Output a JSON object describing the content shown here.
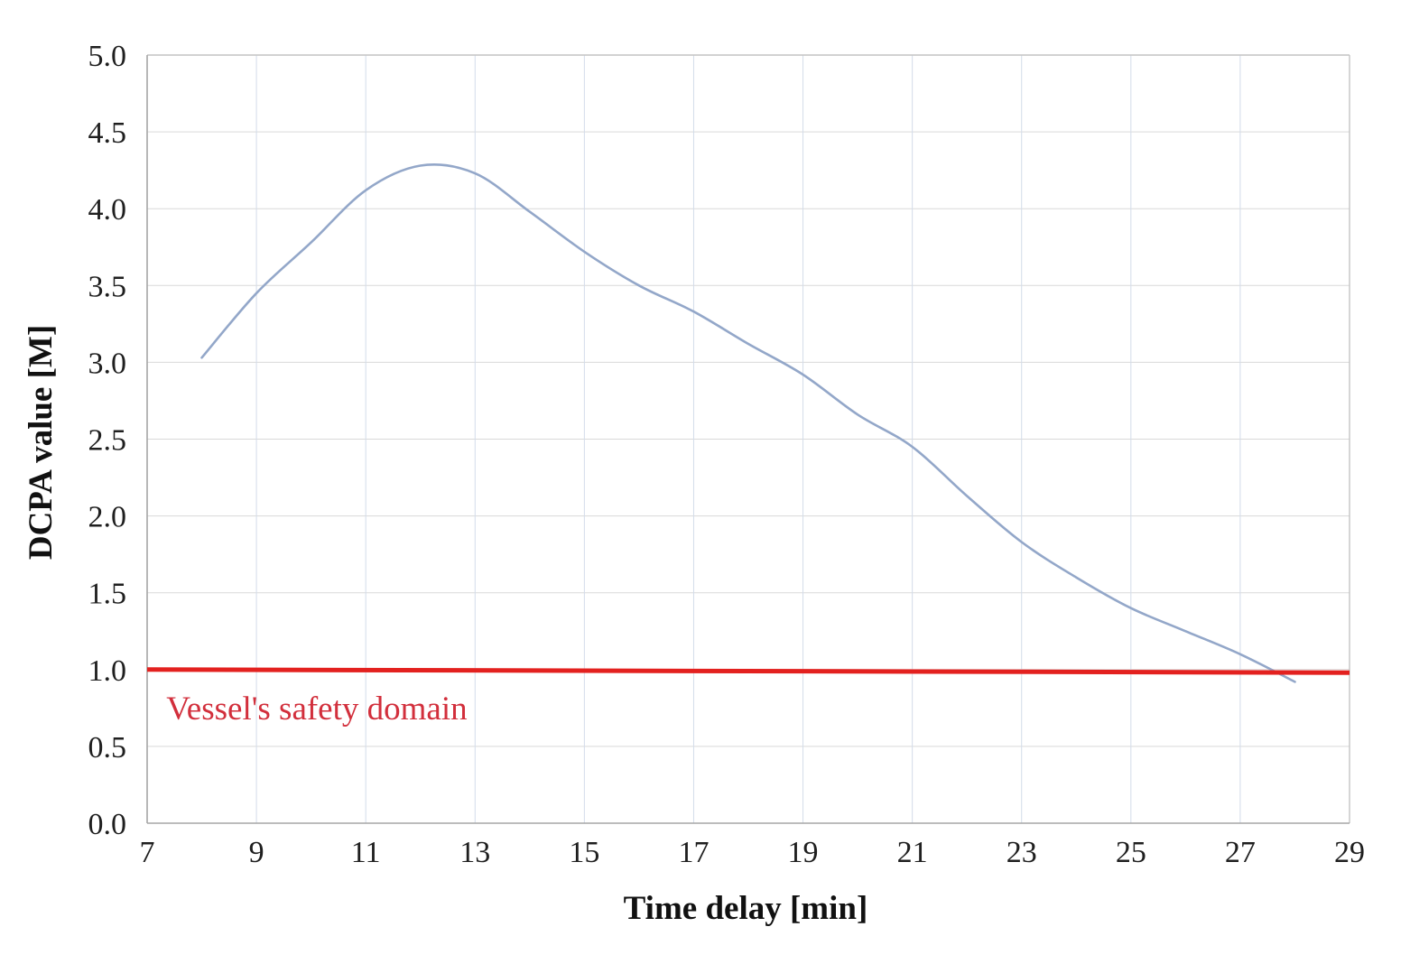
{
  "chart_data": {
    "type": "line",
    "title": "",
    "xlabel": "Time delay [min]",
    "ylabel": "DCPA value [M]",
    "xlim": [
      7,
      29
    ],
    "ylim": [
      0.0,
      5.0
    ],
    "grid": true,
    "legend_position": "none",
    "x_ticks": [
      7,
      9,
      11,
      13,
      15,
      17,
      19,
      21,
      23,
      25,
      27,
      29
    ],
    "x_tick_labels": [
      "7",
      "9",
      "11",
      "13",
      "15",
      "17",
      "19",
      "21",
      "23",
      "25",
      "27",
      "29"
    ],
    "y_ticks": [
      0.0,
      0.5,
      1.0,
      1.5,
      2.0,
      2.5,
      3.0,
      3.5,
      4.0,
      4.5,
      5.0
    ],
    "y_tick_labels": [
      "0.0",
      "0.5",
      "1.0",
      "1.5",
      "2.0",
      "2.5",
      "3.0",
      "3.5",
      "4.0",
      "4.5",
      "5.0"
    ],
    "series": [
      {
        "name": "DCPA value",
        "style": "smooth",
        "color": "#93a7c9",
        "width": 2.6,
        "x": [
          8,
          9,
          10,
          11,
          12,
          13,
          14,
          15,
          16,
          17,
          18,
          19,
          20,
          21,
          22,
          23,
          24,
          25,
          26,
          27,
          28
        ],
        "y": [
          3.03,
          3.45,
          3.78,
          4.12,
          4.28,
          4.23,
          3.98,
          3.72,
          3.5,
          3.33,
          3.12,
          2.92,
          2.66,
          2.45,
          2.13,
          1.83,
          1.6,
          1.4,
          1.25,
          1.1,
          0.92
        ]
      },
      {
        "name": "Vessel's safety domain",
        "style": "straight",
        "color": "#e3211f",
        "width": 5,
        "x": [
          7,
          29
        ],
        "y": [
          1.0,
          0.98
        ]
      }
    ],
    "annotation": {
      "text": "Vessel's safety domain",
      "color": "#d22f3c",
      "x": 7.35,
      "y": 0.675
    },
    "colors": {
      "curve": "#93a7c9",
      "safety_line": "#e3211f",
      "annotation_text": "#d22f3c",
      "grid_vertical": "#d3dcea",
      "grid_horizontal": "#d9d9d9",
      "axis_left_bottom": "#a6a6a6",
      "axis_top_right": "#c4c4c4",
      "tick_text": "#1f1f1f"
    }
  }
}
